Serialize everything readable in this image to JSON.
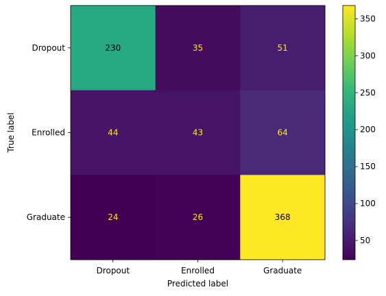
{
  "chart_data": {
    "type": "heatmap",
    "row_categories": [
      "Dropout",
      "Enrolled",
      "Graduate"
    ],
    "col_categories": [
      "Dropout",
      "Enrolled",
      "Graduate"
    ],
    "values": [
      [
        230,
        35,
        51
      ],
      [
        44,
        43,
        64
      ],
      [
        24,
        26,
        368
      ]
    ],
    "xlabel": "Predicted label",
    "ylabel": "True label",
    "colormap": "viridis",
    "color_range": [
      24,
      368
    ],
    "colorbar_ticks": [
      50,
      100,
      150,
      200,
      250,
      300,
      350
    ],
    "text_color_light": "#fde725",
    "text_color_dark": "#000000"
  }
}
